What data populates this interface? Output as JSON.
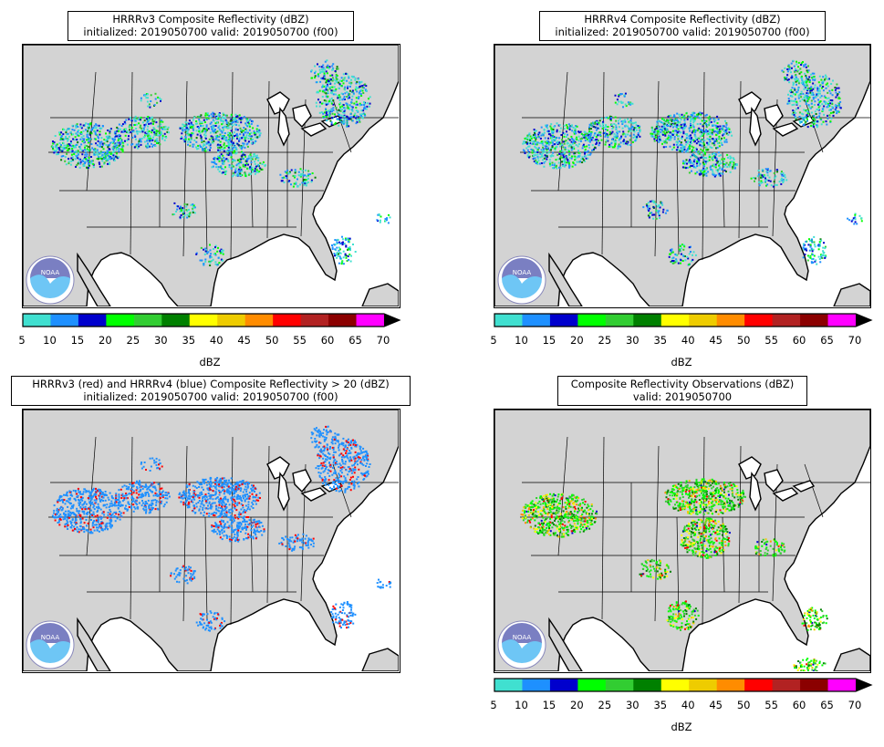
{
  "panels": [
    {
      "id": "hrrrv3",
      "title_line1": "HRRRv3 Composite Reflectivity (dBZ)",
      "title_line2": "initialized: 2019050700 valid: 2019050700 (f00)",
      "has_colorbar": true,
      "logo": "NOAA",
      "echo_color_mode": "reflectivity"
    },
    {
      "id": "hrrrv4",
      "title_line1": "HRRRv4 Composite Reflectivity (dBZ)",
      "title_line2": "initialized: 2019050700 valid: 2019050700 (f00)",
      "has_colorbar": true,
      "logo": "NOAA",
      "echo_color_mode": "reflectivity"
    },
    {
      "id": "comparison",
      "title_line1": "HRRRv3 (red) and HRRRv4 (blue) Composite Reflectivity > 20 (dBZ)",
      "title_line2": "initialized: 2019050700 valid: 2019050700 (f00)",
      "has_colorbar": false,
      "logo": "NOAA",
      "echo_color_mode": "comparison"
    },
    {
      "id": "observations",
      "title_line1": "Composite Reflectivity Observations (dBZ)",
      "title_line2": "valid: 2019050700",
      "has_colorbar": true,
      "logo": "NOAA",
      "echo_color_mode": "observed"
    }
  ],
  "colorbar": {
    "label": "dBZ",
    "ticks": [
      "5",
      "10",
      "15",
      "20",
      "25",
      "30",
      "35",
      "40",
      "45",
      "50",
      "55",
      "60",
      "65",
      "70"
    ],
    "colors": [
      "#40e0d0",
      "#1e90ff",
      "#0000cd",
      "#00ff00",
      "#32cd32",
      "#008000",
      "#ffff00",
      "#eecc00",
      "#ff8c00",
      "#ff0000",
      "#b22222",
      "#8b0000",
      "#ff00ff"
    ],
    "extend_color": "#000000"
  },
  "map_colors": {
    "land": "#d3d3d3",
    "water": "#ffffff",
    "borders": "#000000",
    "v3_color": "#ff0000",
    "v4_color": "#1e90ff"
  }
}
